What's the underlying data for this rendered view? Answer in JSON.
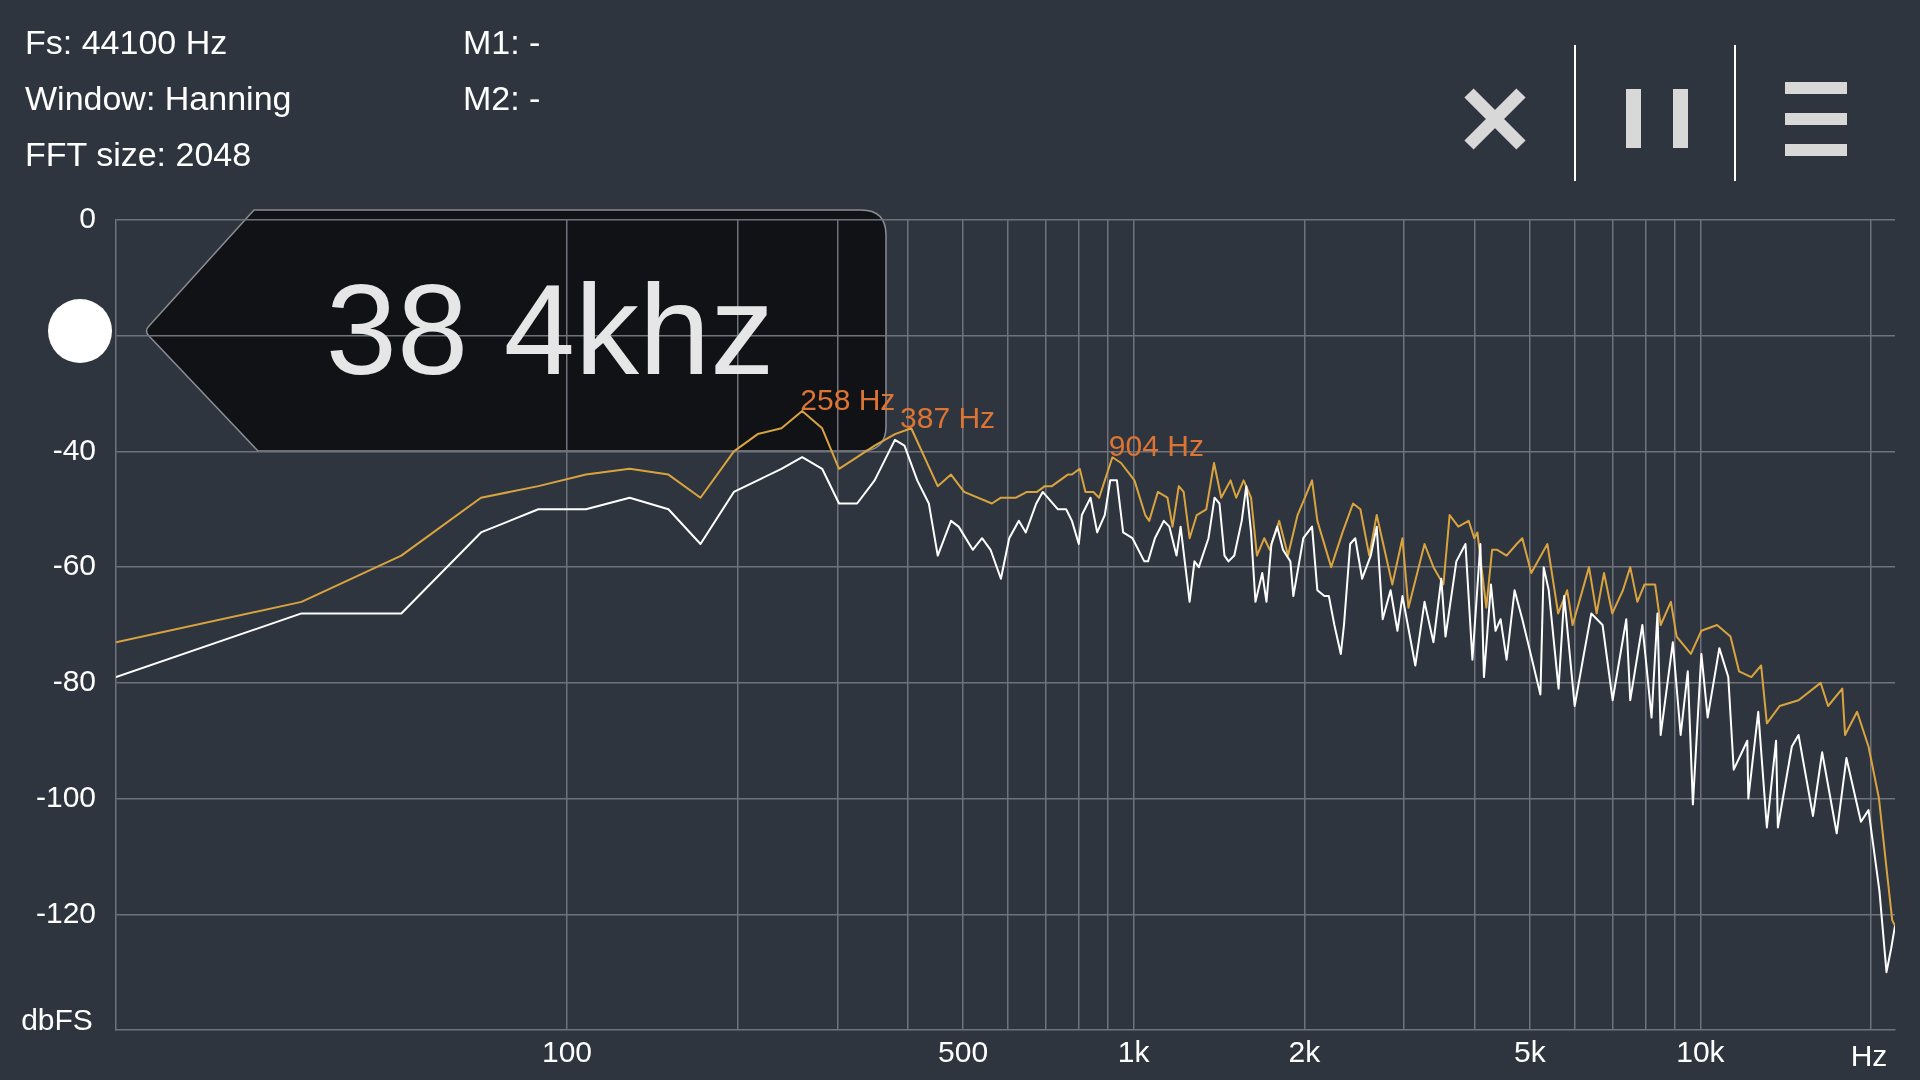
{
  "chart_data": {
    "type": "line",
    "log": "x",
    "grid": true,
    "xlabel": "Hz",
    "ylabel": "dbFS",
    "xlim": [
      16,
      22050
    ],
    "ylim": [
      -140,
      0
    ],
    "xticks": [
      100,
      {
        "value": 200,
        "label": null
      },
      {
        "value": 300,
        "label": null
      },
      {
        "value": 400,
        "label": null
      },
      500,
      {
        "value": 600,
        "label": null
      },
      {
        "value": 700,
        "label": null
      },
      {
        "value": 800,
        "label": null
      },
      {
        "value": 900,
        "label": null
      },
      {
        "value": 1000,
        "label": "1k"
      },
      {
        "value": 2000,
        "label": "2k"
      },
      {
        "value": 3000,
        "label": null
      },
      {
        "value": 4000,
        "label": null
      },
      {
        "value": 5000,
        "label": "5k"
      },
      {
        "value": 6000,
        "label": null
      },
      {
        "value": 7000,
        "label": null
      },
      {
        "value": 8000,
        "label": null
      },
      {
        "value": 9000,
        "label": null
      },
      {
        "value": 10000,
        "label": "10k"
      },
      {
        "value": 20000,
        "label": null
      }
    ],
    "yticks": [
      0,
      {
        "value": -20,
        "label": null
      },
      -40,
      -60,
      -80,
      -100,
      -120
    ],
    "annotations": [
      "Fs: 44100 Hz",
      "Window: Hanning",
      "FFT size: 2048",
      "M1: -",
      "M2: -",
      "38 4khz",
      {
        "text": "258 Hz",
        "x": 258,
        "y": -33
      },
      {
        "text": "387 Hz",
        "x": 387,
        "y": -36
      },
      {
        "text": "904 Hz",
        "x": 904,
        "y": -41
      }
    ],
    "series": [
      {
        "color": "#d9a43f",
        "x": [
          16,
          34,
          51,
          70.5,
          89,
          108,
          129,
          151,
          172,
          197,
          217,
          239,
          260,
          282,
          302,
          325,
          349,
          379,
          405,
          451,
          476,
          502,
          562,
          583,
          620,
          648,
          675,
          697,
          717,
          765,
          778,
          803,
          822,
          849,
          869,
          917,
          950,
          1003,
          1048,
          1065,
          1103,
          1147,
          1171,
          1201,
          1225,
          1255,
          1292,
          1343,
          1386,
          1427,
          1482,
          1517,
          1563,
          1611,
          1650,
          1700,
          1738,
          1806,
          1872,
          1946,
          2005,
          2064,
          2109,
          2231,
          2336,
          2438,
          2512,
          2604,
          2684,
          2860,
          2980,
          3054,
          3260,
          3380,
          3520,
          3610,
          3740,
          3900,
          3990,
          4041,
          4190,
          4290,
          4380,
          4550,
          4740,
          4850,
          5030,
          5370,
          5610,
          5820,
          5950,
          6360,
          6560,
          6760,
          6990,
          7300,
          7520,
          7740,
          7970,
          8320,
          8510,
          8870,
          9080,
          9620,
          10040,
          10700,
          11300,
          11700,
          12300,
          12800,
          13100,
          13800,
          14900,
          16300,
          16800,
          17800,
          18000,
          18900,
          19800,
          20660,
          21300,
          21800,
          22050
        ],
        "values": [
          -73,
          -66,
          -58,
          -48,
          -46,
          -44,
          -43,
          -44,
          -48,
          -40,
          -37,
          -36,
          -33,
          -36,
          -43,
          -41,
          -39,
          -37,
          -36,
          -46,
          -44,
          -47,
          -49,
          -48,
          -48,
          -47,
          -47,
          -46,
          -46,
          -44,
          -44,
          -43,
          -47,
          -47,
          -48,
          -41,
          -42,
          -45,
          -51,
          -52,
          -47,
          -48,
          -53,
          -46,
          -47,
          -55,
          -51,
          -50,
          -42,
          -48,
          -45,
          -48,
          -45,
          -48,
          -58,
          -55,
          -57,
          -52,
          -58,
          -51,
          -48,
          -45,
          -52,
          -60,
          -54,
          -49,
          -50,
          -58,
          -51,
          -63,
          -55,
          -67,
          -56,
          -60,
          -63,
          -51,
          -53,
          -52,
          -55,
          -54,
          -67,
          -57,
          -57,
          -58,
          -56,
          -55,
          -61,
          -56,
          -68,
          -64,
          -70,
          -60,
          -68,
          -61,
          -68,
          -64,
          -60,
          -66,
          -63,
          -63,
          -70,
          -66,
          -72,
          -75,
          -71,
          -70,
          -72,
          -78,
          -79,
          -77,
          -87,
          -84,
          -83,
          -80,
          -84,
          -81,
          -89,
          -85,
          -91,
          -100,
          -112,
          -121,
          -122
        ]
      },
      {
        "color": "#ffffff",
        "x": [
          16,
          34,
          51,
          70.5,
          89,
          108,
          129,
          151,
          172,
          197,
          217,
          239,
          260,
          282,
          302,
          325,
          349,
          379,
          394,
          415,
          435,
          451,
          476,
          491,
          520,
          540,
          559,
          583,
          603,
          627,
          645,
          673,
          691,
          735,
          760,
          778,
          800,
          810,
          839,
          862,
          889,
          909,
          934,
          958,
          995,
          1044,
          1060,
          1090,
          1130,
          1156,
          1190,
          1210,
          1255,
          1280,
          1303,
          1355,
          1389,
          1417,
          1446,
          1470,
          1505,
          1551,
          1580,
          1611,
          1640,
          1686,
          1715,
          1750,
          1792,
          1834,
          1890,
          1913,
          1992,
          2064,
          2109,
          2170,
          2210,
          2260,
          2320,
          2350,
          2410,
          2460,
          2530,
          2620,
          2684,
          2750,
          2840,
          2920,
          2980,
          3140,
          3260,
          3380,
          3490,
          3550,
          3710,
          3850,
          3960,
          4090,
          4150,
          4270,
          4350,
          4440,
          4550,
          4700,
          4850,
          5220,
          5290,
          5400,
          5620,
          5750,
          6000,
          6230,
          6420,
          6720,
          7000,
          7400,
          7520,
          7900,
          8200,
          8400,
          8510,
          8940,
          9230,
          9500,
          9700,
          10040,
          10300,
          10800,
          11200,
          11450,
          12100,
          12150,
          12650,
          13100,
          13600,
          13700,
          14500,
          14900,
          15800,
          16400,
          17400,
          18100,
          19200,
          19800,
          20700,
          21300,
          21700,
          22050
        ],
        "values": [
          -79,
          -68,
          -68,
          -54,
          -50,
          -50,
          -48,
          -50,
          -56,
          -47,
          -45,
          -43,
          -41,
          -43,
          -49,
          -49,
          -45,
          -38,
          -39,
          -45,
          -49,
          -58,
          -52,
          -53,
          -57,
          -55,
          -57,
          -62,
          -55,
          -52,
          -54,
          -49,
          -47,
          -50,
          -50,
          -52,
          -56,
          -51,
          -48,
          -54,
          -51,
          -45,
          -45,
          -54,
          -55,
          -59,
          -59,
          -55,
          -52,
          -53,
          -58,
          -53,
          -66,
          -59,
          -60,
          -55,
          -48,
          -49,
          -58,
          -59,
          -58,
          -52,
          -46,
          -54,
          -66,
          -61,
          -66,
          -56,
          -53,
          -57,
          -59,
          -65,
          -55,
          -53,
          -64,
          -65,
          -65,
          -70,
          -75,
          -70,
          -56,
          -55,
          -62,
          -58,
          -53,
          -69,
          -64,
          -71,
          -65,
          -77,
          -66,
          -73,
          -62,
          -72,
          -59,
          -56,
          -76,
          -56,
          -79,
          -63,
          -71,
          -69,
          -76,
          -64,
          -69,
          -82,
          -60,
          -64,
          -81,
          -65,
          -84,
          -75,
          -68,
          -70,
          -83,
          -69,
          -83,
          -70,
          -86,
          -68,
          -89,
          -73,
          -89,
          -78,
          -101,
          -75,
          -86,
          -74,
          -79,
          -95,
          -90,
          -100,
          -85,
          -105,
          -90,
          -105,
          -91,
          -89,
          -103,
          -92,
          -106,
          -93,
          -104,
          -102,
          -116,
          -130,
          -126,
          -122
        ]
      }
    ]
  }
}
